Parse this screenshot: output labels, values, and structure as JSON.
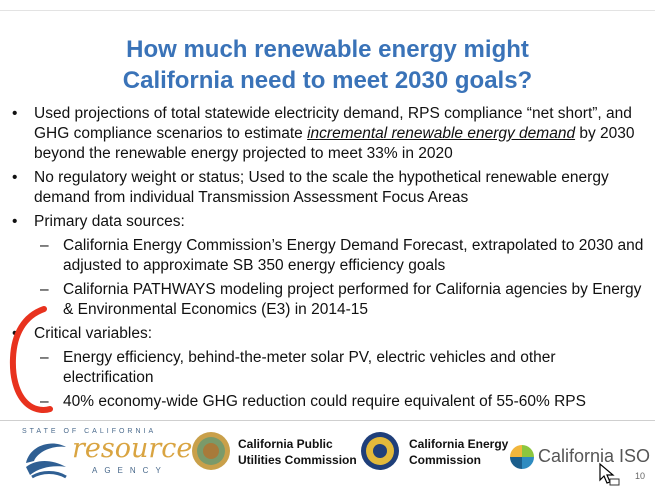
{
  "slide": {
    "title_lines": [
      "How much renewable energy might",
      "California need to meet 2030 goals?"
    ],
    "bullets": {
      "b1_part1": "Used projections of total statewide electricity demand, RPS compliance “net short”, and GHG compliance scenarios to estimate ",
      "b1_emph": "incremental renewable energy demand",
      "b1_part2": " by 2030 beyond the renewable energy projected to meet 33% in 2020",
      "b2": "No regulatory weight or status; Used to the scale the hypothetical renewable energy demand from individual Transmission Assessment Focus Areas",
      "b3": "Primary data sources:",
      "b3_sub1": "California Energy Commission’s Energy Demand Forecast, extrapolated to 2030 and adjusted to approximate SB 350 energy efficiency goals",
      "b3_sub2": "California PATHWAYS modeling project performed for California agencies by Energy & Environmental Economics (E3) in 2014-15",
      "b4": "Critical variables:",
      "b4_sub1": "Energy efficiency, behind-the-meter solar PV, electric vehicles and other electrification",
      "b4_sub2": "40% economy-wide GHG reduction could require equivalent of 55-60% RPS"
    },
    "page_number": "10"
  },
  "footer": {
    "resources_agency": {
      "top_text": "STATE OF CALIFORNIA",
      "word": "resources",
      "bottom_text": "AGENCY"
    },
    "cpuc": [
      "California Public",
      "Utilities Commission"
    ],
    "cec": [
      "California Energy",
      "Commission"
    ],
    "iso": "California ISO"
  },
  "colors": {
    "title": "#3a73b8",
    "annotation": "#e8321e",
    "resources_gold": "#d9a441",
    "resources_blue": "#2f5f93"
  }
}
